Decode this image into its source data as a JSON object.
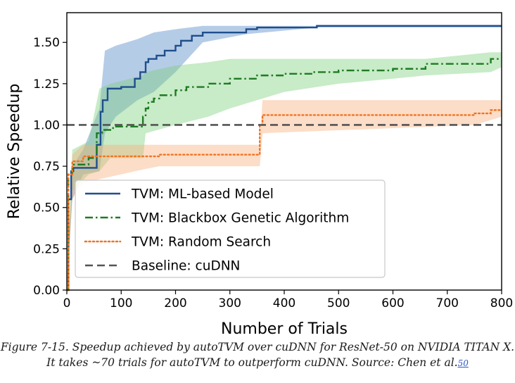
{
  "chart_data": {
    "type": "line",
    "xlabel": "Number of Trials",
    "ylabel": "Relative Speedup",
    "xlim": [
      0,
      800
    ],
    "ylim": [
      0,
      1.68
    ],
    "xticks": [
      0,
      100,
      200,
      300,
      400,
      500,
      600,
      700,
      800
    ],
    "yticks": [
      0.0,
      0.25,
      0.5,
      0.75,
      1.0,
      1.25,
      1.5
    ],
    "xtick_labels": [
      "0",
      "100",
      "200",
      "300",
      "400",
      "500",
      "600",
      "700",
      "800"
    ],
    "ytick_labels": [
      "0.00",
      "0.25",
      "0.50",
      "0.75",
      "1.00",
      "1.25",
      "1.50"
    ],
    "grid": false,
    "legend": "lower-center",
    "series": [
      {
        "name": "TVM: ML-based Model",
        "color": "#1f4e8c",
        "style": "solid",
        "band_color": "#4f86c6",
        "x": [
          0,
          3,
          3,
          8,
          8,
          12,
          12,
          55,
          55,
          62,
          62,
          66,
          66,
          75,
          75,
          100,
          100,
          125,
          125,
          135,
          135,
          145,
          145,
          150,
          150,
          165,
          165,
          180,
          180,
          200,
          200,
          210,
          210,
          230,
          230,
          250,
          250,
          330,
          330,
          350,
          350,
          460,
          460,
          800
        ],
        "y": [
          0.0,
          0.0,
          0.55,
          0.55,
          0.72,
          0.72,
          0.74,
          0.74,
          0.88,
          0.88,
          1.08,
          1.08,
          1.15,
          1.15,
          1.22,
          1.22,
          1.23,
          1.23,
          1.28,
          1.28,
          1.32,
          1.32,
          1.38,
          1.38,
          1.4,
          1.4,
          1.42,
          1.42,
          1.45,
          1.45,
          1.48,
          1.48,
          1.51,
          1.51,
          1.54,
          1.54,
          1.56,
          1.56,
          1.58,
          1.58,
          1.59,
          1.59,
          1.6,
          1.6
        ],
        "band_x": [
          0,
          10,
          30,
          60,
          70,
          90,
          110,
          130,
          160,
          200,
          250,
          330,
          460,
          800
        ],
        "band_low": [
          0.0,
          0.55,
          0.7,
          0.72,
          0.95,
          1.05,
          1.1,
          1.15,
          1.2,
          1.32,
          1.5,
          1.55,
          1.59,
          1.59
        ],
        "band_high": [
          0.0,
          0.75,
          0.85,
          1.1,
          1.45,
          1.48,
          1.5,
          1.52,
          1.56,
          1.58,
          1.6,
          1.6,
          1.6,
          1.6
        ]
      },
      {
        "name": "TVM: Blackbox Genetic Algorithm",
        "color": "#1e7b22",
        "style": "dashdot",
        "band_color": "#7ccf7c",
        "x": [
          0,
          3,
          3,
          10,
          10,
          40,
          40,
          55,
          55,
          65,
          65,
          85,
          85,
          140,
          140,
          145,
          145,
          150,
          150,
          160,
          160,
          170,
          170,
          200,
          200,
          220,
          220,
          260,
          260,
          300,
          300,
          350,
          350,
          400,
          400,
          450,
          450,
          500,
          500,
          600,
          600,
          660,
          660,
          780,
          780,
          800
        ],
        "y": [
          0.0,
          0.0,
          0.7,
          0.7,
          0.76,
          0.76,
          0.8,
          0.8,
          0.95,
          0.95,
          0.97,
          0.97,
          0.99,
          0.99,
          1.05,
          1.05,
          1.1,
          1.1,
          1.14,
          1.14,
          1.16,
          1.16,
          1.18,
          1.18,
          1.21,
          1.21,
          1.23,
          1.23,
          1.25,
          1.25,
          1.28,
          1.28,
          1.3,
          1.3,
          1.31,
          1.31,
          1.32,
          1.32,
          1.33,
          1.33,
          1.34,
          1.34,
          1.37,
          1.37,
          1.4,
          1.4
        ],
        "band_x": [
          0,
          10,
          40,
          60,
          80,
          140,
          145,
          200,
          260,
          300,
          400,
          500,
          600,
          660,
          780,
          800
        ],
        "band_low": [
          0.0,
          0.6,
          0.7,
          0.72,
          0.8,
          0.8,
          0.95,
          1.0,
          1.05,
          1.1,
          1.2,
          1.25,
          1.28,
          1.3,
          1.32,
          1.35
        ],
        "band_high": [
          0.0,
          0.85,
          0.9,
          1.22,
          1.25,
          1.3,
          1.32,
          1.36,
          1.38,
          1.4,
          1.4,
          1.4,
          1.4,
          1.4,
          1.44,
          1.44
        ]
      },
      {
        "name": "TVM: Random Search",
        "color": "#f07322",
        "style": "dotted",
        "band_color": "#f9ad7a",
        "x": [
          0,
          3,
          3,
          10,
          10,
          30,
          30,
          170,
          170,
          355,
          355,
          360,
          360,
          750,
          750,
          780,
          780,
          800
        ],
        "y": [
          0.0,
          0.0,
          0.7,
          0.7,
          0.78,
          0.78,
          0.81,
          0.81,
          0.82,
          0.82,
          1.0,
          1.0,
          1.06,
          1.06,
          1.07,
          1.07,
          1.09,
          1.09
        ],
        "band_x": [
          0,
          10,
          30,
          140,
          170,
          355,
          360,
          750,
          800
        ],
        "band_low": [
          0.0,
          0.55,
          0.65,
          0.73,
          0.75,
          0.75,
          0.95,
          1.0,
          1.05
        ],
        "band_high": [
          0.0,
          0.82,
          0.88,
          0.88,
          0.88,
          0.88,
          1.15,
          1.15,
          1.15
        ]
      },
      {
        "name": "Baseline: cuDNN",
        "color": "#555555",
        "style": "dashed",
        "x": [
          0,
          800
        ],
        "y": [
          1.0,
          1.0
        ]
      }
    ]
  },
  "caption": {
    "text": "Figure 7-15. Speedup achieved by autoTVM over cuDNN for ResNet-50 on NVIDIA TITAN X. It takes ~70 trials for autoTVM to outperform cuDNN. Source: Chen et al.",
    "ref": "50"
  }
}
